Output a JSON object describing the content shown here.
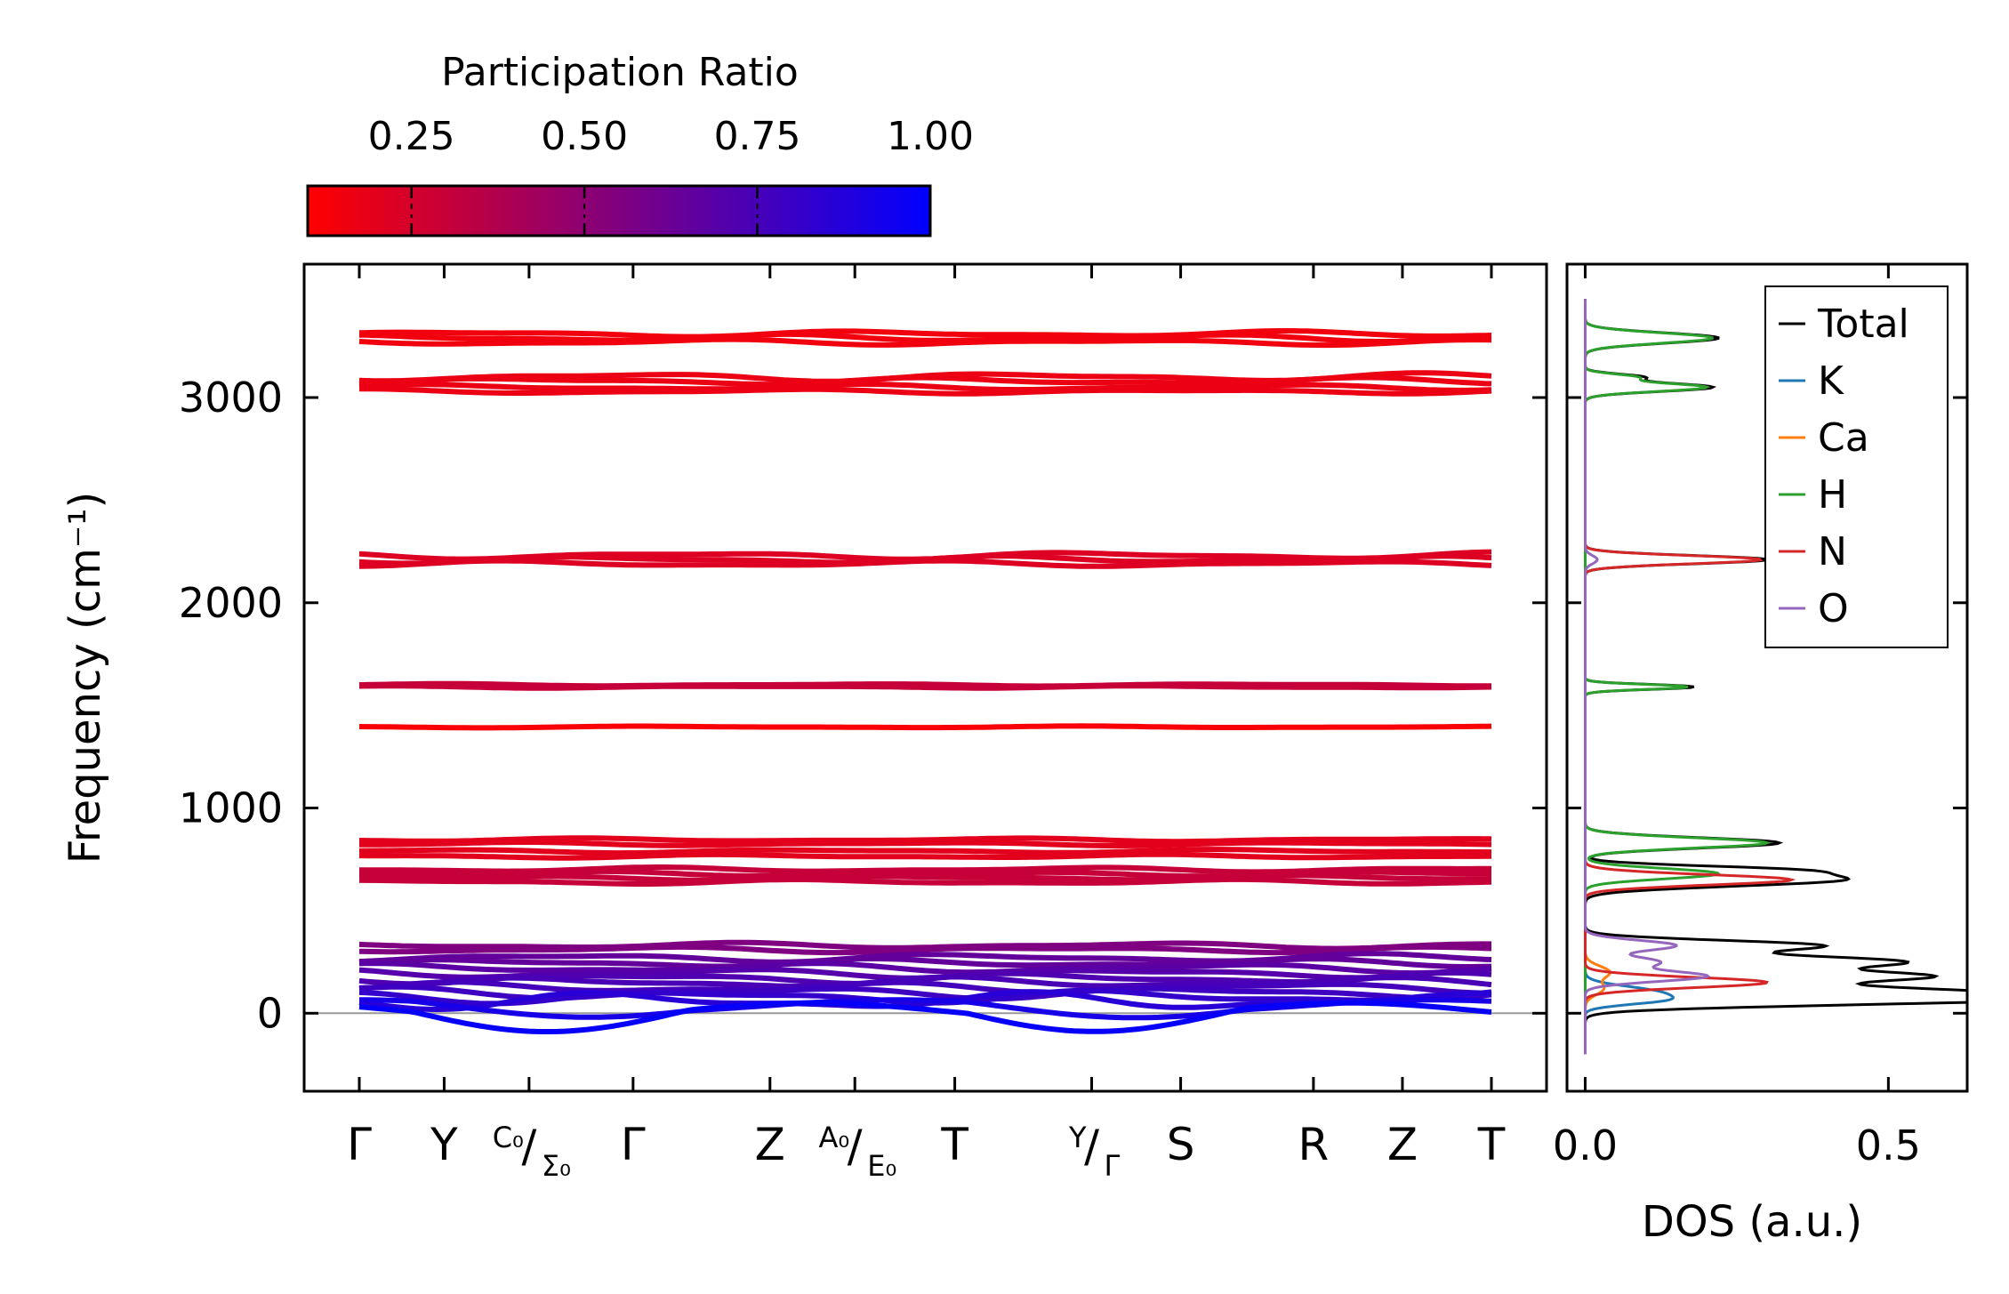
{
  "colorbar": {
    "title": "Participation Ratio",
    "range": [
      0.1,
      1.0
    ],
    "ticks": [
      {
        "value": 0.25,
        "label": "0.25"
      },
      {
        "value": 0.5,
        "label": "0.50"
      },
      {
        "value": 0.75,
        "label": "0.75"
      },
      {
        "value": 1.0,
        "label": "1.00"
      }
    ],
    "color_low": "#ff0000",
    "color_high": "#0000ff"
  },
  "chart_data": [
    {
      "type": "line",
      "name": "phonon-band-structure",
      "ylabel": "Frequency (cm⁻¹)",
      "ylim": [
        -380,
        3650
      ],
      "yticks": [
        {
          "value": 0,
          "label": "0"
        },
        {
          "value": 1000,
          "label": "1000"
        },
        {
          "value": 2000,
          "label": "2000"
        },
        {
          "value": 3000,
          "label": "3000"
        }
      ],
      "kpoints": [
        {
          "pos": 0.0,
          "label": "Γ"
        },
        {
          "pos": 0.62,
          "label": "Y"
        },
        {
          "pos": 1.24,
          "label": "C₀|Σ₀",
          "top": "C₀",
          "sub": "Σ₀"
        },
        {
          "pos": 2.0,
          "label": "Γ"
        },
        {
          "pos": 3.0,
          "label": "Z"
        },
        {
          "pos": 3.62,
          "label": "A₀|E₀",
          "top": "A₀",
          "sub": "E₀"
        },
        {
          "pos": 4.35,
          "label": "T"
        },
        {
          "pos": 5.35,
          "label": "Y|Γ",
          "top": "Y",
          "sub": "Γ"
        },
        {
          "pos": 6.0,
          "label": "S"
        },
        {
          "pos": 6.97,
          "label": "R"
        },
        {
          "pos": 7.62,
          "label": "Z"
        },
        {
          "pos": 8.27,
          "label": "T"
        }
      ],
      "bands": [
        {
          "freq": 3310,
          "amp": 10,
          "pr": 0.15
        },
        {
          "freq": 3290,
          "amp": 12,
          "pr": 0.15
        },
        {
          "freq": 3270,
          "amp": 10,
          "pr": 0.15
        },
        {
          "freq": 3100,
          "amp": 14,
          "pr": 0.17
        },
        {
          "freq": 3080,
          "amp": 12,
          "pr": 0.17
        },
        {
          "freq": 3050,
          "amp": 10,
          "pr": 0.17
        },
        {
          "freq": 3030,
          "amp": 8,
          "pr": 0.17
        },
        {
          "freq": 2230,
          "amp": 12,
          "pr": 0.22
        },
        {
          "freq": 2210,
          "amp": 12,
          "pr": 0.22
        },
        {
          "freq": 2190,
          "amp": 10,
          "pr": 0.22
        },
        {
          "freq": 1600,
          "amp": 4,
          "pr": 0.3
        },
        {
          "freq": 1590,
          "amp": 4,
          "pr": 0.3
        },
        {
          "freq": 1395,
          "amp": 3,
          "pr": 0.12
        },
        {
          "freq": 845,
          "amp": 6,
          "pr": 0.2
        },
        {
          "freq": 825,
          "amp": 6,
          "pr": 0.2
        },
        {
          "freq": 790,
          "amp": 6,
          "pr": 0.2
        },
        {
          "freq": 765,
          "amp": 6,
          "pr": 0.2
        },
        {
          "freq": 700,
          "amp": 8,
          "pr": 0.3
        },
        {
          "freq": 680,
          "amp": 8,
          "pr": 0.3
        },
        {
          "freq": 660,
          "amp": 8,
          "pr": 0.3
        },
        {
          "freq": 640,
          "amp": 8,
          "pr": 0.3
        },
        {
          "freq": 330,
          "amp": 10,
          "pr": 0.55
        },
        {
          "freq": 310,
          "amp": 10,
          "pr": 0.55
        },
        {
          "freq": 270,
          "amp": 14,
          "pr": 0.65
        },
        {
          "freq": 245,
          "amp": 14,
          "pr": 0.65
        },
        {
          "freq": 220,
          "amp": 16,
          "pr": 0.68
        },
        {
          "freq": 195,
          "amp": 16,
          "pr": 0.7
        },
        {
          "freq": 170,
          "amp": 18,
          "pr": 0.72
        },
        {
          "freq": 150,
          "amp": 18,
          "pr": 0.74
        },
        {
          "freq": 125,
          "amp": 18,
          "pr": 0.76
        },
        {
          "freq": 100,
          "amp": 20,
          "pr": 0.78
        },
        {
          "freq": 80,
          "amp": 22,
          "pr": 0.82
        },
        {
          "freq": 60,
          "amp": 30,
          "pr": 0.86
        },
        {
          "freq": 35,
          "amp": 30,
          "pr": 0.92
        },
        {
          "freq": 10,
          "amp": 40,
          "pr": 0.98
        }
      ]
    },
    {
      "type": "line",
      "name": "density-of-states",
      "xlabel": "DOS (a.u.)",
      "xlim": [
        -0.03,
        0.63
      ],
      "ylim": [
        -380,
        3650
      ],
      "xticks": [
        {
          "value": 0.0,
          "label": "0.0"
        },
        {
          "value": 0.5,
          "label": "0.5"
        }
      ],
      "legend_position": "top-right",
      "series": [
        {
          "name": "Total",
          "color": "#000000",
          "peaks": [
            [
              3290,
              0.22,
              25
            ],
            [
              3050,
              0.21,
              20
            ],
            [
              3100,
              0.09,
              15
            ],
            [
              2210,
              0.3,
              20
            ],
            [
              1590,
              0.18,
              12
            ],
            [
              830,
              0.32,
              25
            ],
            [
              650,
              0.42,
              30
            ],
            [
              700,
              0.25,
              20
            ],
            [
              330,
              0.38,
              25
            ],
            [
              250,
              0.52,
              30
            ],
            [
              180,
              0.5,
              25
            ],
            [
              100,
              0.6,
              35
            ],
            [
              60,
              0.4,
              25
            ]
          ]
        },
        {
          "name": "K",
          "color": "#1f77b4",
          "peaks": [
            [
              100,
              0.12,
              30
            ],
            [
              60,
              0.08,
              20
            ]
          ]
        },
        {
          "name": "Ca",
          "color": "#ff7f0e",
          "peaks": [
            [
              200,
              0.04,
              30
            ],
            [
              120,
              0.03,
              30
            ]
          ]
        },
        {
          "name": "H",
          "color": "#2ca02c",
          "peaks": [
            [
              3290,
              0.21,
              25
            ],
            [
              3050,
              0.2,
              20
            ],
            [
              3100,
              0.08,
              15
            ],
            [
              1590,
              0.17,
              12
            ],
            [
              830,
              0.3,
              25
            ],
            [
              680,
              0.22,
              25
            ]
          ]
        },
        {
          "name": "N",
          "color": "#d62728",
          "peaks": [
            [
              2210,
              0.29,
              20
            ],
            [
              650,
              0.34,
              25
            ],
            [
              150,
              0.3,
              25
            ]
          ]
        },
        {
          "name": "O",
          "color": "#9467bd",
          "peaks": [
            [
              2210,
              0.02,
              20
            ],
            [
              330,
              0.15,
              25
            ],
            [
              250,
              0.12,
              25
            ],
            [
              180,
              0.2,
              25
            ]
          ]
        }
      ]
    }
  ]
}
